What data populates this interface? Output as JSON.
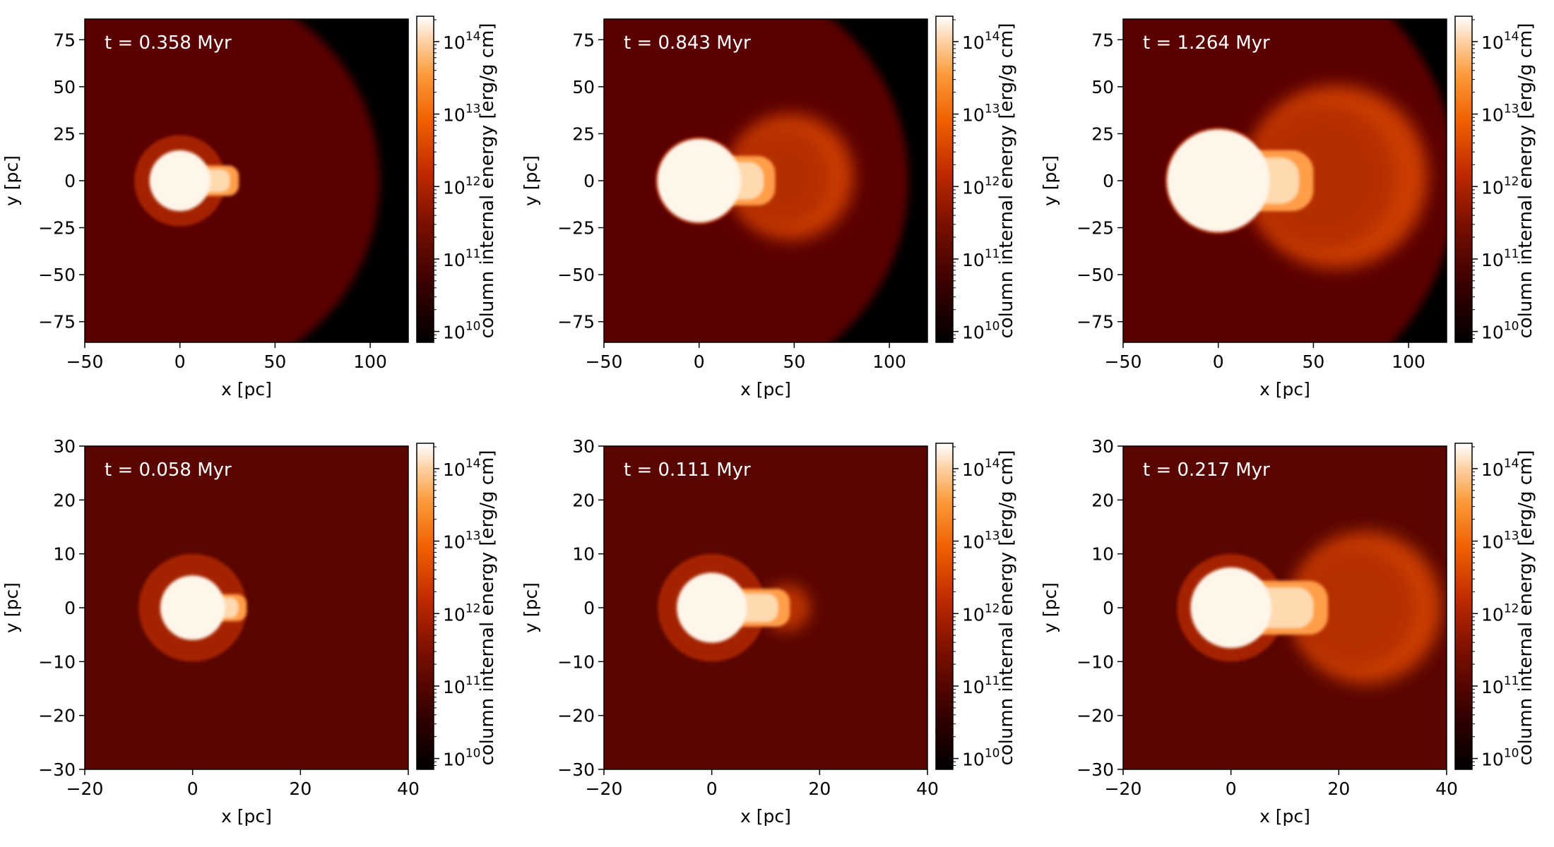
{
  "figure": {
    "colormap": "gist_heat",
    "colorbar_label": "column internal energy [erg/g cm]",
    "colorbar_ticks": [
      {
        "value": 10,
        "base": "10",
        "exp": "10"
      },
      {
        "value": 11,
        "base": "10",
        "exp": "11"
      },
      {
        "value": 12,
        "base": "10",
        "exp": "12"
      },
      {
        "value": 13,
        "base": "10",
        "exp": "13"
      },
      {
        "value": 14,
        "base": "10",
        "exp": "14"
      }
    ],
    "colorbar_range_log10": [
      9.85,
      14.35
    ],
    "colors": {
      "background_gas": "#5a0600",
      "void": "#000000",
      "hot_core": "#fff6ea",
      "shell": "#a42000",
      "shock": "#e04a00"
    }
  },
  "chart_data": [
    {
      "type": "heatmap",
      "panel": "top-left",
      "annotation": "t = 0.358 Myr",
      "xlabel": "x [pc]",
      "ylabel": "y [pc]",
      "xlim": [
        -50,
        120
      ],
      "ylim": [
        -86,
        86
      ],
      "xticks": [
        {
          "v": -50,
          "t": "−50"
        },
        {
          "v": 0,
          "t": "0"
        },
        {
          "v": 50,
          "t": "50"
        },
        {
          "v": 100,
          "t": "100"
        }
      ],
      "yticks": [
        {
          "v": -75,
          "t": "−75"
        },
        {
          "v": -50,
          "t": "−50"
        },
        {
          "v": -25,
          "t": "−25"
        },
        {
          "v": 0,
          "t": "0"
        },
        {
          "v": 25,
          "t": "25"
        },
        {
          "v": 50,
          "t": "50"
        },
        {
          "v": 75,
          "t": "75"
        }
      ],
      "features": {
        "ambient_front_radius_pc": 105,
        "ambient_front_center_pc": [
          0,
          0
        ],
        "shell_radius_pc": 24,
        "core_radius_pc": 16,
        "jet_end_x_pc": 31,
        "jet_halfwidth_pc": 8,
        "bubble_center_pc": [
          0,
          0
        ],
        "bubble_radius_pc": 0
      }
    },
    {
      "type": "heatmap",
      "panel": "top-center",
      "annotation": "t = 0.843 Myr",
      "xlabel": "x [pc]",
      "ylabel": "y [pc]",
      "xlim": [
        -50,
        120
      ],
      "ylim": [
        -86,
        86
      ],
      "xticks": [
        {
          "v": -50,
          "t": "−50"
        },
        {
          "v": 0,
          "t": "0"
        },
        {
          "v": 50,
          "t": "50"
        },
        {
          "v": 100,
          "t": "100"
        }
      ],
      "yticks": [
        {
          "v": -75,
          "t": "−75"
        },
        {
          "v": -50,
          "t": "−50"
        },
        {
          "v": -25,
          "t": "−25"
        },
        {
          "v": 0,
          "t": "0"
        },
        {
          "v": 25,
          "t": "25"
        },
        {
          "v": 50,
          "t": "50"
        },
        {
          "v": 75,
          "t": "75"
        }
      ],
      "features": {
        "ambient_front_radius_pc": 110,
        "ambient_front_center_pc": [
          0,
          0
        ],
        "shell_radius_pc": 23,
        "core_radius_pc": 22,
        "jet_end_x_pc": 40,
        "jet_halfwidth_pc": 13,
        "bubble_center_pc": [
          48,
          2
        ],
        "bubble_radius_pc": 33
      }
    },
    {
      "type": "heatmap",
      "panel": "top-right",
      "annotation": "t = 1.264 Myr",
      "xlabel": "x [pc]",
      "ylabel": "y [pc]",
      "xlim": [
        -50,
        120
      ],
      "ylim": [
        -86,
        86
      ],
      "xticks": [
        {
          "v": -50,
          "t": "−50"
        },
        {
          "v": 0,
          "t": "0"
        },
        {
          "v": 50,
          "t": "50"
        },
        {
          "v": 100,
          "t": "100"
        }
      ],
      "yticks": [
        {
          "v": -75,
          "t": "−75"
        },
        {
          "v": -50,
          "t": "−50"
        },
        {
          "v": -25,
          "t": "−25"
        },
        {
          "v": 0,
          "t": "0"
        },
        {
          "v": 25,
          "t": "25"
        },
        {
          "v": 50,
          "t": "50"
        },
        {
          "v": 75,
          "t": "75"
        }
      ],
      "features": {
        "ambient_front_radius_pc": 125,
        "ambient_front_center_pc": [
          0,
          0
        ],
        "shell_radius_pc": 28,
        "core_radius_pc": 27,
        "jet_end_x_pc": 50,
        "jet_halfwidth_pc": 16,
        "bubble_center_pc": [
          62,
          2
        ],
        "bubble_radius_pc": 48
      }
    },
    {
      "type": "heatmap",
      "panel": "bottom-left",
      "annotation": "t = 0.058 Myr",
      "xlabel": "x [pc]",
      "ylabel": "y [pc]",
      "xlim": [
        -20,
        40
      ],
      "ylim": [
        -30,
        30
      ],
      "xticks": [
        {
          "v": -20,
          "t": "−20"
        },
        {
          "v": 0,
          "t": "0"
        },
        {
          "v": 20,
          "t": "20"
        },
        {
          "v": 40,
          "t": "40"
        }
      ],
      "yticks": [
        {
          "v": -30,
          "t": "−30"
        },
        {
          "v": -20,
          "t": "−20"
        },
        {
          "v": -10,
          "t": "−10"
        },
        {
          "v": 0,
          "t": "0"
        },
        {
          "v": 10,
          "t": "10"
        },
        {
          "v": 20,
          "t": "20"
        },
        {
          "v": 30,
          "t": "30"
        }
      ],
      "features": {
        "ambient_front_radius_pc": 0,
        "ambient_front_center_pc": [
          0,
          0
        ],
        "shell_radius_pc": 10,
        "core_radius_pc": 6,
        "jet_end_x_pc": 10,
        "jet_halfwidth_pc": 2.5,
        "bubble_center_pc": [
          0,
          0
        ],
        "bubble_radius_pc": 0
      }
    },
    {
      "type": "heatmap",
      "panel": "bottom-center",
      "annotation": "t = 0.111 Myr",
      "xlabel": "x [pc]",
      "ylabel": "y [pc]",
      "xlim": [
        -20,
        40
      ],
      "ylim": [
        -30,
        30
      ],
      "xticks": [
        {
          "v": -20,
          "t": "−20"
        },
        {
          "v": 0,
          "t": "0"
        },
        {
          "v": 20,
          "t": "20"
        },
        {
          "v": 40,
          "t": "40"
        }
      ],
      "yticks": [
        {
          "v": -30,
          "t": "−30"
        },
        {
          "v": -20,
          "t": "−20"
        },
        {
          "v": -10,
          "t": "−10"
        },
        {
          "v": 0,
          "t": "0"
        },
        {
          "v": 10,
          "t": "10"
        },
        {
          "v": 20,
          "t": "20"
        },
        {
          "v": 30,
          "t": "30"
        }
      ],
      "features": {
        "ambient_front_radius_pc": 0,
        "ambient_front_center_pc": [
          0,
          0
        ],
        "shell_radius_pc": 10,
        "core_radius_pc": 6.5,
        "jet_end_x_pc": 14.5,
        "jet_halfwidth_pc": 3.5,
        "bubble_center_pc": [
          14,
          0
        ],
        "bubble_radius_pc": 4
      }
    },
    {
      "type": "heatmap",
      "panel": "bottom-right",
      "annotation": "t = 0.217 Myr",
      "xlabel": "x [pc]",
      "ylabel": "y [pc]",
      "xlim": [
        -20,
        40
      ],
      "ylim": [
        -30,
        30
      ],
      "xticks": [
        {
          "v": -20,
          "t": "−20"
        },
        {
          "v": 0,
          "t": "0"
        },
        {
          "v": 20,
          "t": "20"
        },
        {
          "v": 40,
          "t": "40"
        }
      ],
      "yticks": [
        {
          "v": -30,
          "t": "−30"
        },
        {
          "v": -20,
          "t": "−20"
        },
        {
          "v": -10,
          "t": "−10"
        },
        {
          "v": 0,
          "t": "0"
        },
        {
          "v": 10,
          "t": "10"
        },
        {
          "v": 20,
          "t": "20"
        },
        {
          "v": 30,
          "t": "30"
        }
      ],
      "features": {
        "ambient_front_radius_pc": 0,
        "ambient_front_center_pc": [
          0,
          0
        ],
        "shell_radius_pc": 10,
        "core_radius_pc": 7.5,
        "jet_end_x_pc": 18,
        "jet_halfwidth_pc": 5,
        "bubble_center_pc": [
          25,
          0
        ],
        "bubble_radius_pc": 14
      }
    }
  ]
}
